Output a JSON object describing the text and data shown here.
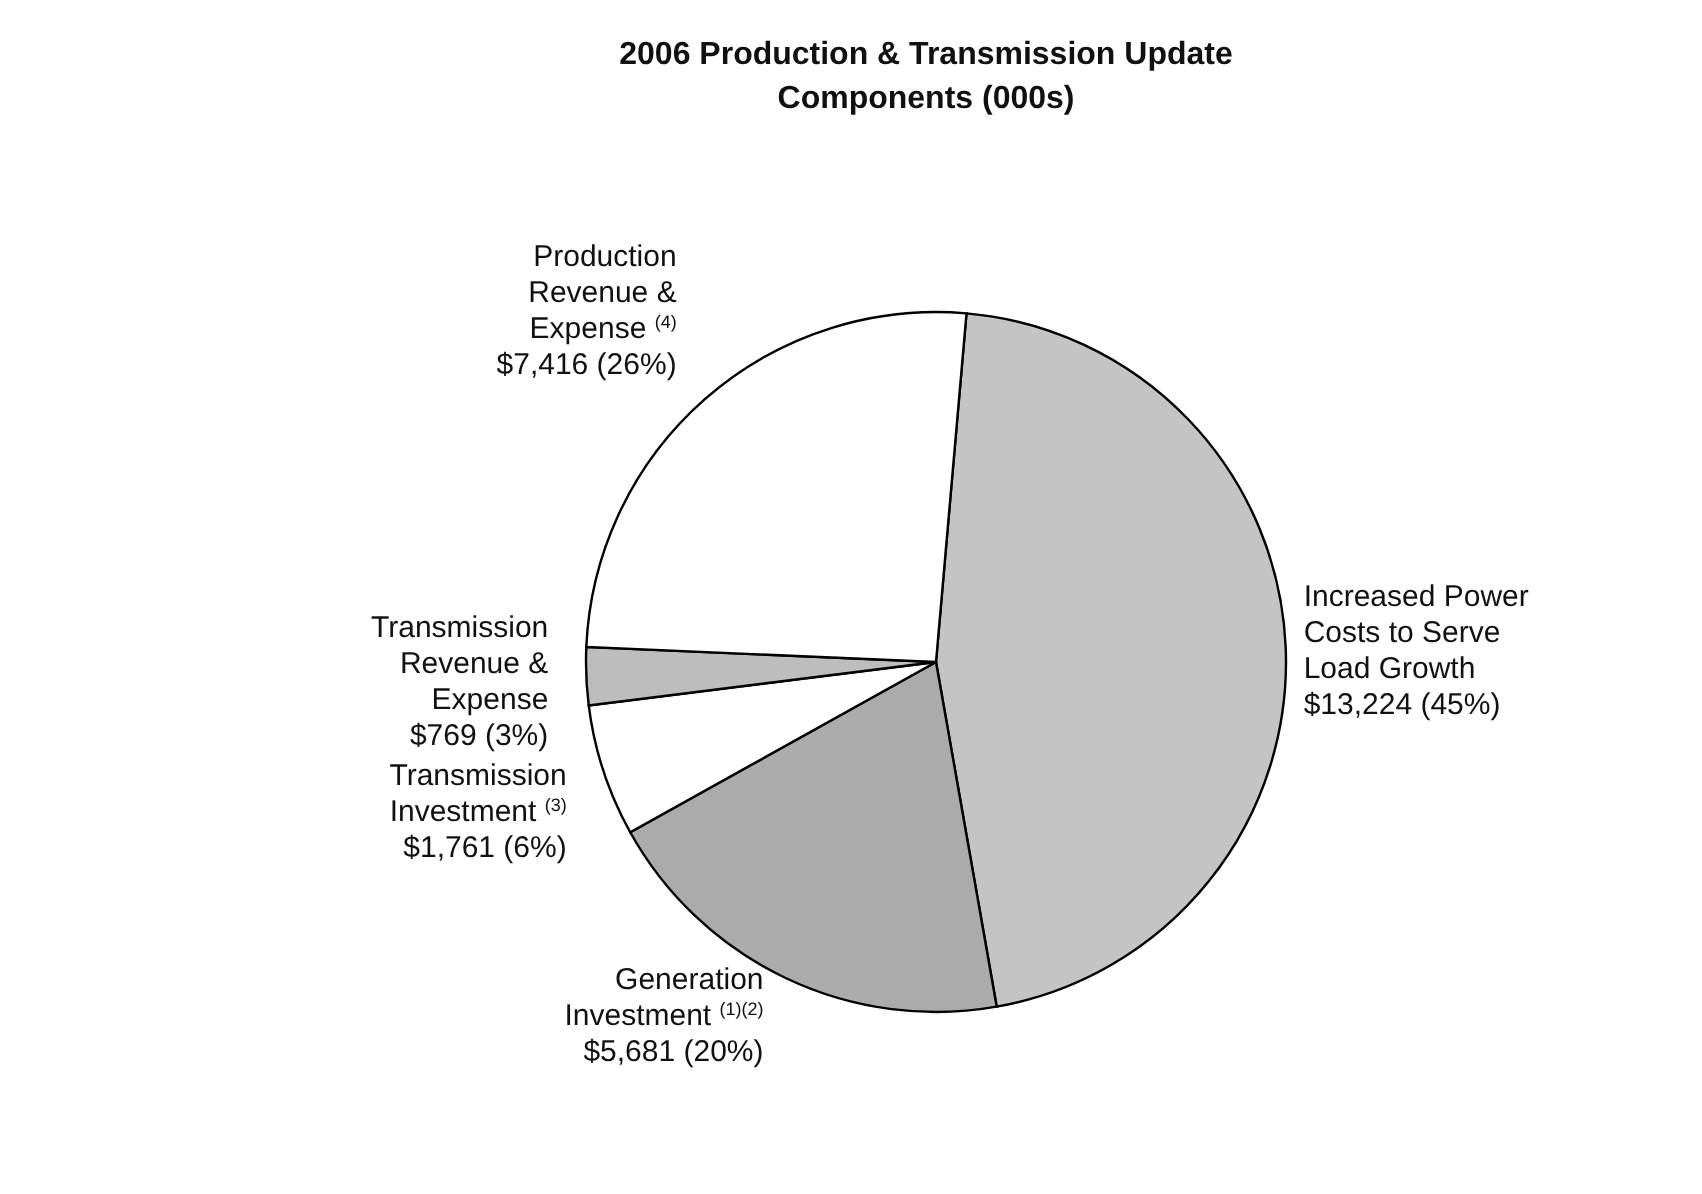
{
  "chart_data": {
    "type": "pie",
    "title": "2006 Production & Transmission Update Components (000s)",
    "categories": [
      "Increased Power Costs to Serve Load Growth",
      "Generation Investment $^{(1)(2)}$",
      "Transmission Investment $^{(3)}$",
      "Transmission Revenue & Expense",
      "Production Revenue & Expense $^{(4)}$"
    ],
    "values": [
      13224,
      5681,
      1761,
      769,
      7416
    ],
    "colors": [
      "#c4c4c4",
      "#ababab",
      "#ffffff",
      "#bdbdbd",
      "#ffffff"
    ],
    "value_labels": [
      "$13,224  (45%)",
      "$5,681  (20%)",
      "$1,761  (6%)",
      "$769  (3%)",
      "$7,416  (26%)"
    ]
  }
}
